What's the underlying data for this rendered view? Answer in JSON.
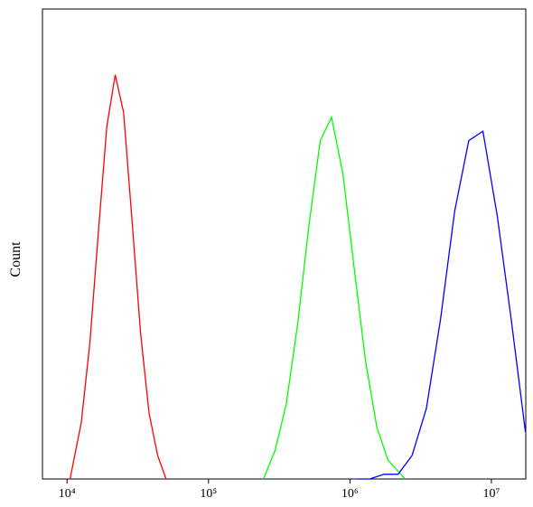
{
  "chart_data": {
    "type": "line",
    "ylabel": "Count",
    "xscale": "log",
    "xlim": [
      6700,
      17500000
    ],
    "ylim": [
      0,
      100
    ],
    "xticks": [
      {
        "value": 10000,
        "label": "10⁴"
      },
      {
        "value": 100000,
        "label": "10⁵"
      },
      {
        "value": 1000000,
        "label": "10⁶"
      },
      {
        "value": 10000000,
        "label": "10⁷"
      }
    ],
    "series": [
      {
        "color": "#ff0000",
        "x": [
          10500,
          12600,
          14500,
          16600,
          19100,
          21900,
          25100,
          28800,
          33100,
          38000,
          43700,
          50100
        ],
        "values": [
          0,
          12,
          29,
          52,
          75,
          86,
          78,
          55,
          31,
          14,
          5,
          0
        ]
      },
      {
        "color": "#00ff00",
        "x": [
          245000,
          295000,
          355000,
          427000,
          513000,
          617000,
          741000,
          891000,
          1070000,
          1290000,
          1550000,
          1860000,
          2450000
        ],
        "values": [
          0,
          6,
          16,
          33,
          54,
          72,
          77,
          65,
          45,
          25,
          11,
          4,
          0
        ]
      },
      {
        "color": "#0000ff",
        "x": [
          1100000,
          1380000,
          1740000,
          2190000,
          2750000,
          3470000,
          4370000,
          5500000,
          6920000,
          8710000,
          11000000,
          13800000,
          17400000
        ],
        "values": [
          0,
          0,
          1,
          1,
          5,
          15,
          34,
          57,
          72,
          74,
          56,
          34,
          10
        ]
      }
    ]
  }
}
